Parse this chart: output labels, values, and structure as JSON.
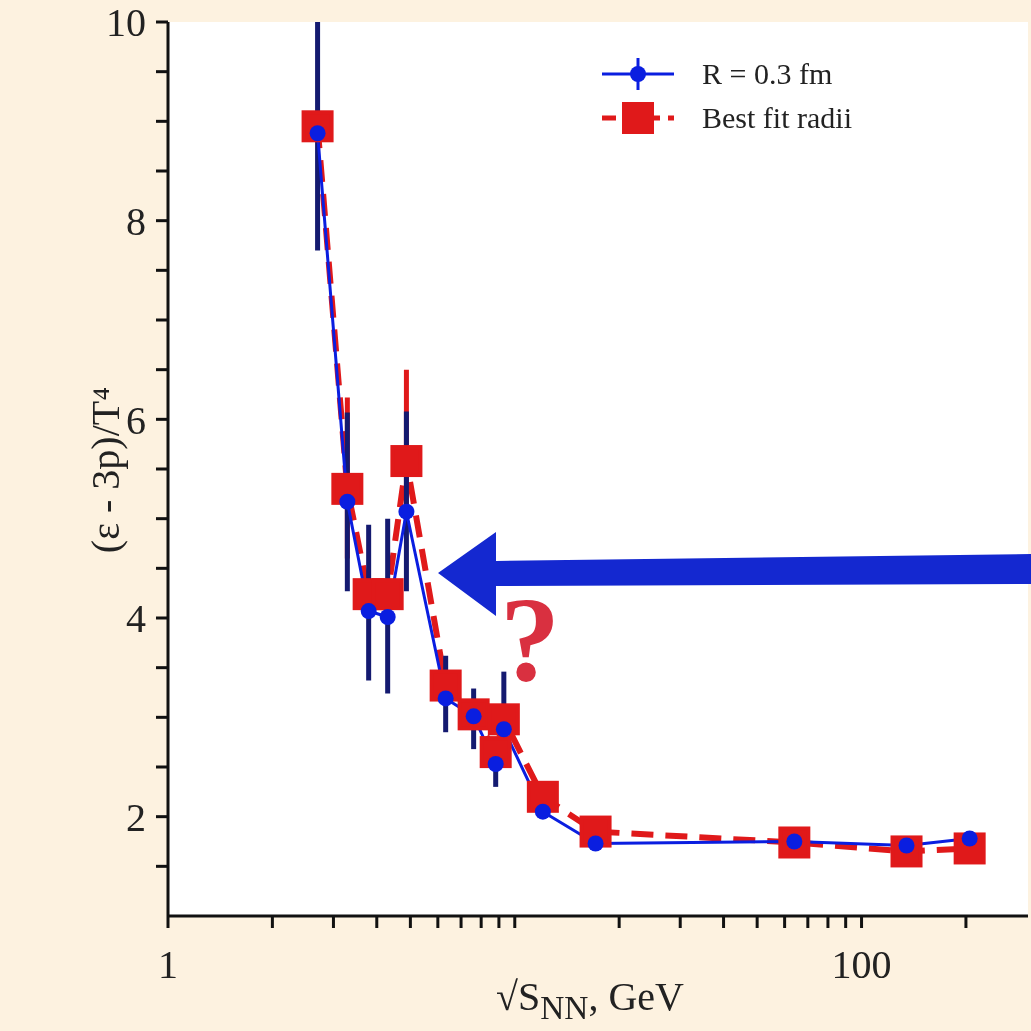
{
  "chart_data": {
    "type": "line",
    "xlabel": "√S$_{NN}$, GeV",
    "ylabel": "(ε - 3p)/T⁴",
    "log": "x",
    "x": [
      2.7,
      3.29,
      3.79,
      4.3,
      4.87,
      6.32,
      7.61,
      8.81,
      9.3,
      12.05,
      17.1,
      64.0,
      134.8,
      205
    ],
    "xlim": [
      1,
      302
    ],
    "xticks": [
      1,
      {
        "value": 2,
        "label": null
      },
      {
        "value": 3,
        "label": null
      },
      {
        "value": 4,
        "label": null
      },
      {
        "value": 5,
        "label": null
      },
      {
        "value": 6,
        "label": null
      },
      {
        "value": 7,
        "label": null
      },
      {
        "value": 8,
        "label": null
      },
      {
        "value": 9,
        "label": null
      },
      {
        "value": 10,
        "label": null
      },
      {
        "value": 20,
        "label": null
      },
      {
        "value": 30,
        "label": null
      },
      {
        "value": 40,
        "label": null
      },
      {
        "value": 50,
        "label": null
      },
      {
        "value": 60,
        "label": null
      },
      {
        "value": 70,
        "label": null
      },
      {
        "value": 80,
        "label": null
      },
      {
        "value": 90,
        "label": null
      },
      100,
      {
        "value": 200,
        "label": null
      }
    ],
    "ylim": [
      1,
      10
    ],
    "yticks": [
      {
        "value": 1.5,
        "label": null
      },
      2,
      {
        "value": 2.5,
        "label": null
      },
      {
        "value": 3,
        "label": null
      },
      {
        "value": 3.5,
        "label": null
      },
      4,
      {
        "value": 4.5,
        "label": null
      },
      {
        "value": 5,
        "label": null
      },
      {
        "value": 5.5,
        "label": null
      },
      6,
      {
        "value": 6.5,
        "label": null
      },
      {
        "value": 7,
        "label": null
      },
      {
        "value": 7.5,
        "label": null
      },
      8,
      {
        "value": 8.5,
        "label": null
      },
      {
        "value": 9,
        "label": null
      },
      {
        "value": 9.5,
        "label": null
      },
      10
    ],
    "grid": false,
    "legend": "top right",
    "series": [
      {
        "name": "Best fit radii",
        "color": "#e0191a",
        "marker": "square",
        "line_style": "dashed",
        "values": [
          8.95,
          5.3,
          4.24,
          4.24,
          5.58,
          3.32,
          3.03,
          2.65,
          2.98,
          2.2,
          1.85,
          1.74,
          1.65,
          1.68
        ],
        "errors": [
          null,
          [
            4.6,
            6.22
          ],
          null,
          null,
          [
            4.9,
            6.5
          ],
          null,
          null,
          null,
          null,
          null,
          null,
          null,
          null,
          null
        ]
      },
      {
        "name": "R = 0.3 fm",
        "color": "#0a1ee0",
        "marker": "circle",
        "line_style": "solid",
        "values": [
          8.88,
          5.17,
          4.07,
          4.01,
          5.07,
          3.19,
          3.01,
          2.53,
          2.88,
          2.05,
          1.73,
          1.75,
          1.71,
          1.78
        ],
        "errors": [
          [
            7.7,
            10
          ],
          [
            4.27,
            6.07
          ],
          [
            3.37,
            4.94
          ],
          [
            3.24,
            5.0
          ],
          [
            4.27,
            6.08
          ],
          [
            2.85,
            3.62
          ],
          [
            2.68,
            3.29
          ],
          [
            2.3,
            2.53
          ],
          [
            2.88,
            3.46
          ],
          null,
          null,
          null,
          null,
          null
        ]
      }
    ],
    "annotations": [
      "?"
    ]
  }
}
